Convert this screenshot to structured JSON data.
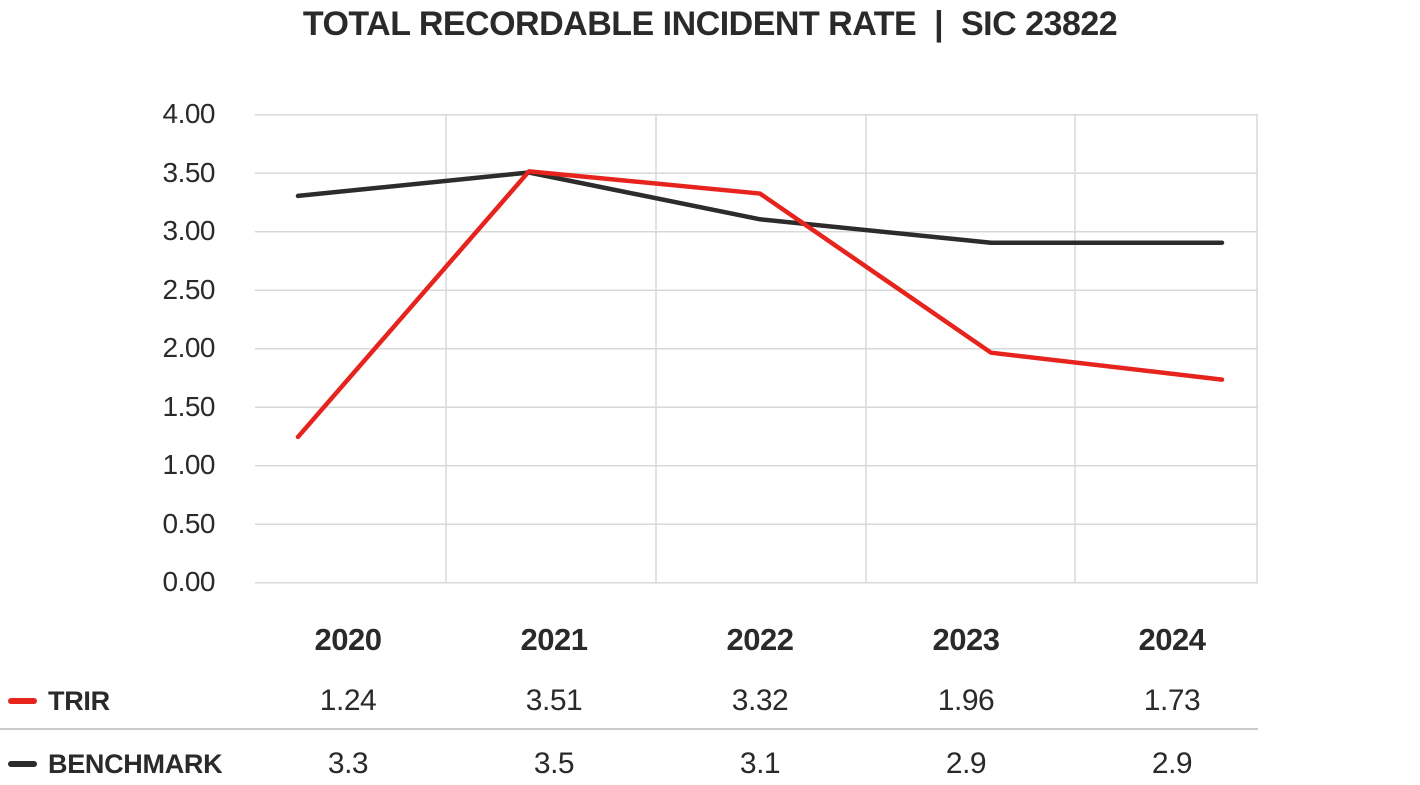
{
  "title": "TOTAL RECORDABLE INCIDENT RATE  |  SIC 23822",
  "colors": {
    "background": "#ffffff",
    "text": "#2b2a29",
    "grid": "#d8d8d8",
    "divider": "#cbcbcb",
    "trir_red": "#e7231d",
    "benchmark_black": "#2d2c2b"
  },
  "chart_data": {
    "type": "line",
    "title": "TOTAL RECORDABLE INCIDENT RATE | SIC 23822",
    "categories": [
      "2020",
      "2021",
      "2022",
      "2023",
      "2024"
    ],
    "series": [
      {
        "name": "TRIR",
        "color": "#e7231d",
        "values": [
          1.24,
          3.51,
          3.32,
          1.96,
          1.73
        ],
        "labels": [
          "1.24",
          "3.51",
          "3.32",
          "1.96",
          "1.73"
        ]
      },
      {
        "name": "BENCHMARK",
        "color": "#2d2c2b",
        "values": [
          3.3,
          3.5,
          3.1,
          2.9,
          2.9
        ],
        "labels": [
          "3.3",
          "3.5",
          "3.1",
          "2.9",
          "2.9"
        ]
      }
    ],
    "xlabel": "",
    "ylabel": "",
    "ylim": [
      0,
      4
    ],
    "y_tick_step": 0.5,
    "y_ticks": [
      "4.00",
      "3.50",
      "3.00",
      "2.50",
      "2.00",
      "1.50",
      "1.00",
      "0.50",
      "0.00"
    ],
    "grid": "horizontal lines at every 0.50 plus vertical category-boundary lines, light gray",
    "legend_position": "bottom-left as table row headers"
  }
}
